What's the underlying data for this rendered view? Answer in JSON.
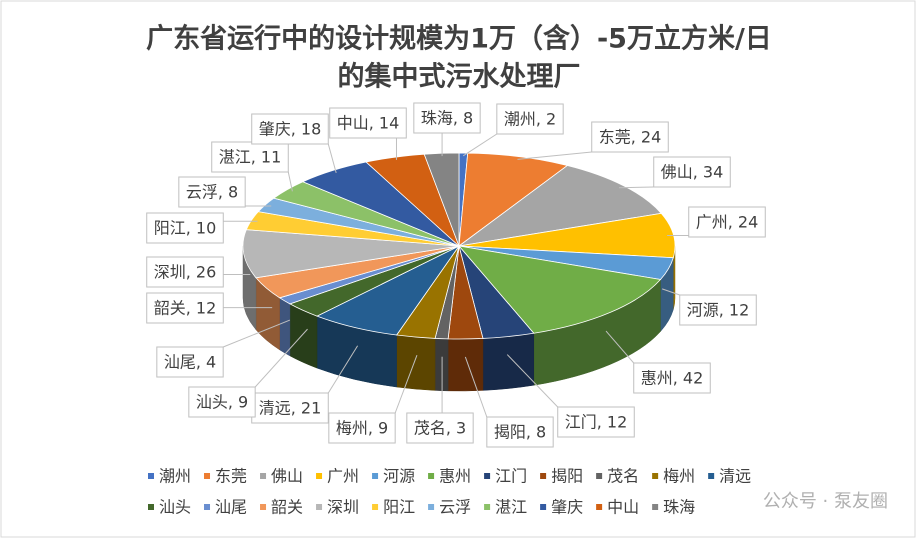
{
  "chart_data": {
    "type": "pie3d",
    "title": [
      "广东省运行中的设计规模为1万（含）-5万立方米/日",
      "的集中式污水处理厂"
    ],
    "categories": [
      "潮州",
      "东莞",
      "佛山",
      "广州",
      "河源",
      "惠州",
      "江门",
      "揭阳",
      "茂名",
      "梅州",
      "清远",
      "汕头",
      "汕尾",
      "韶关",
      "深圳",
      "阳江",
      "云浮",
      "湛江",
      "肇庆",
      "中山",
      "珠海"
    ],
    "values": [
      2,
      24,
      34,
      24,
      12,
      42,
      12,
      8,
      3,
      9,
      21,
      9,
      4,
      12,
      26,
      10,
      8,
      11,
      18,
      14,
      8
    ],
    "value_labels": [
      "潮州, 2",
      "东莞, 24",
      "佛山, 34",
      "广州, 24",
      "河源, 12",
      "惠州, 42",
      "江门, 12",
      "揭阳, 8",
      "茂名, 3",
      "梅州, 9",
      "清远, 21",
      "汕头, 9",
      "汕尾, 4",
      "韶关, 12",
      "深圳, 26",
      "阳江, 10",
      "云浮, 8",
      "湛江, 11",
      "肇庆, 18",
      "中山, 14",
      "珠海, 8"
    ],
    "colors": [
      "#4472C4",
      "#ED7D31",
      "#A5A5A5",
      "#FFC000",
      "#5B9BD5",
      "#70AD47",
      "#264478",
      "#9E480E",
      "#636363",
      "#997300",
      "#255E91",
      "#43682B",
      "#698ED0",
      "#F1975A",
      "#B7B7B7",
      "#FFCD33",
      "#7CAFDD",
      "#8CC168",
      "#335AA1",
      "#D26012",
      "#848484"
    ],
    "legend": "bottom",
    "watermark": "公众号 · 泵友圈"
  }
}
